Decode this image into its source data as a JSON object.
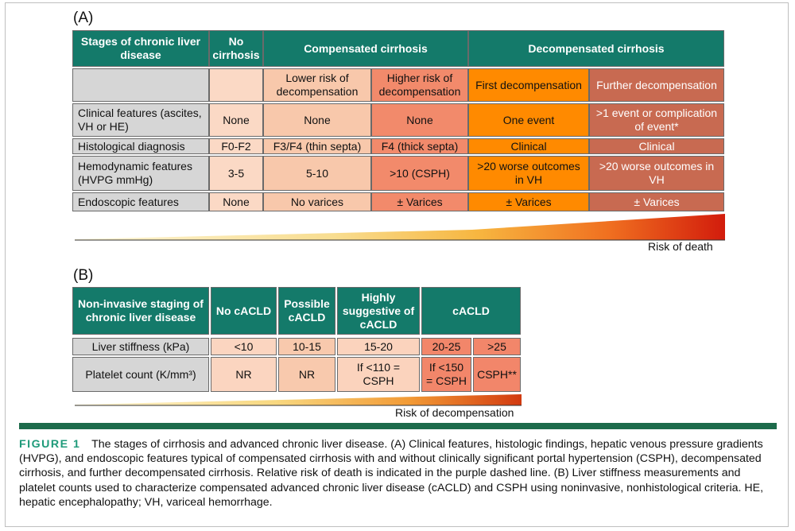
{
  "panel_a": {
    "label": "(A)",
    "headers": {
      "stages": "Stages of chronic liver disease",
      "no_cirrhosis": "No cirrhosis",
      "compensated": "Compensated cirrhosis",
      "decompensated": "Decompensated cirrhosis"
    },
    "subheaders": {
      "lower_risk": "Lower risk of decompensation",
      "higher_risk": "Higher risk of decompensation",
      "first_decomp": "First decompensation",
      "further_decomp": "Further decompensation"
    },
    "rows": [
      {
        "label": "Clinical features (ascites, VH or HE)",
        "values": [
          "None",
          "None",
          "None",
          "One event",
          ">1 event or complication of event*"
        ]
      },
      {
        "label": "Histological diagnosis",
        "values": [
          "F0-F2",
          "F3/F4 (thin septa)",
          "F4 (thick septa)",
          "Clinical",
          "Clinical"
        ]
      },
      {
        "label": "Hemodynamic features (HVPG mmHg)",
        "values": [
          "3-5",
          "5-10",
          ">10 (CSPH)",
          ">20 worse outcomes in VH",
          ">20 worse outcomes in VH"
        ]
      },
      {
        "label": "Endoscopic features",
        "values": [
          "None",
          "No varices",
          "± Varices",
          "± Varices",
          "± Varices"
        ]
      }
    ],
    "risk_label": "Risk of death"
  },
  "panel_b": {
    "label": "(B)",
    "headers": {
      "staging": "Non-invasive staging of chronic liver disease",
      "no_cacld": "No cACLD",
      "possible": "Possible cACLD",
      "highly": "Highly suggestive of cACLD",
      "cacld": "cACLD"
    },
    "rows": [
      {
        "label": "Liver stiffness (kPa)",
        "values": [
          "<10",
          "10-15",
          "15-20",
          "20-25",
          ">25"
        ]
      },
      {
        "label": "Platelet count (K/mm³)",
        "values": [
          "NR",
          "NR",
          "If <110 = CSPH",
          "If <150 = CSPH",
          "CSPH**"
        ]
      }
    ],
    "risk_label": "Risk of decompensation"
  },
  "caption": {
    "figure_label": "FIGURE 1",
    "text": "The stages of cirrhosis and advanced chronic liver disease. (A) Clinical features, histologic findings, hepatic venous pressure gradients (HVPG), and endoscopic features typical of compensated cirrhosis with and without clinically significant portal hypertension (CSPH), decompensated cirrhosis, and further decompensated cirrhosis. Relative risk of death is indicated in the purple dashed line. (B) Liver stiffness measurements and platelet counts used to characterize compensated advanced chronic liver disease (cACLD) and CSPH using noninvasive, nonhistological criteria. HE, hepatic encephalopathy; VH, variceal hemorrhage."
  },
  "colors": {
    "header_teal": "#147a6a",
    "divider_green": "#1d6b4b",
    "figure_label": "#1e9a79",
    "first_decomp_orange": "#ff8a00",
    "further_decomp_brown": "#c86a51"
  }
}
